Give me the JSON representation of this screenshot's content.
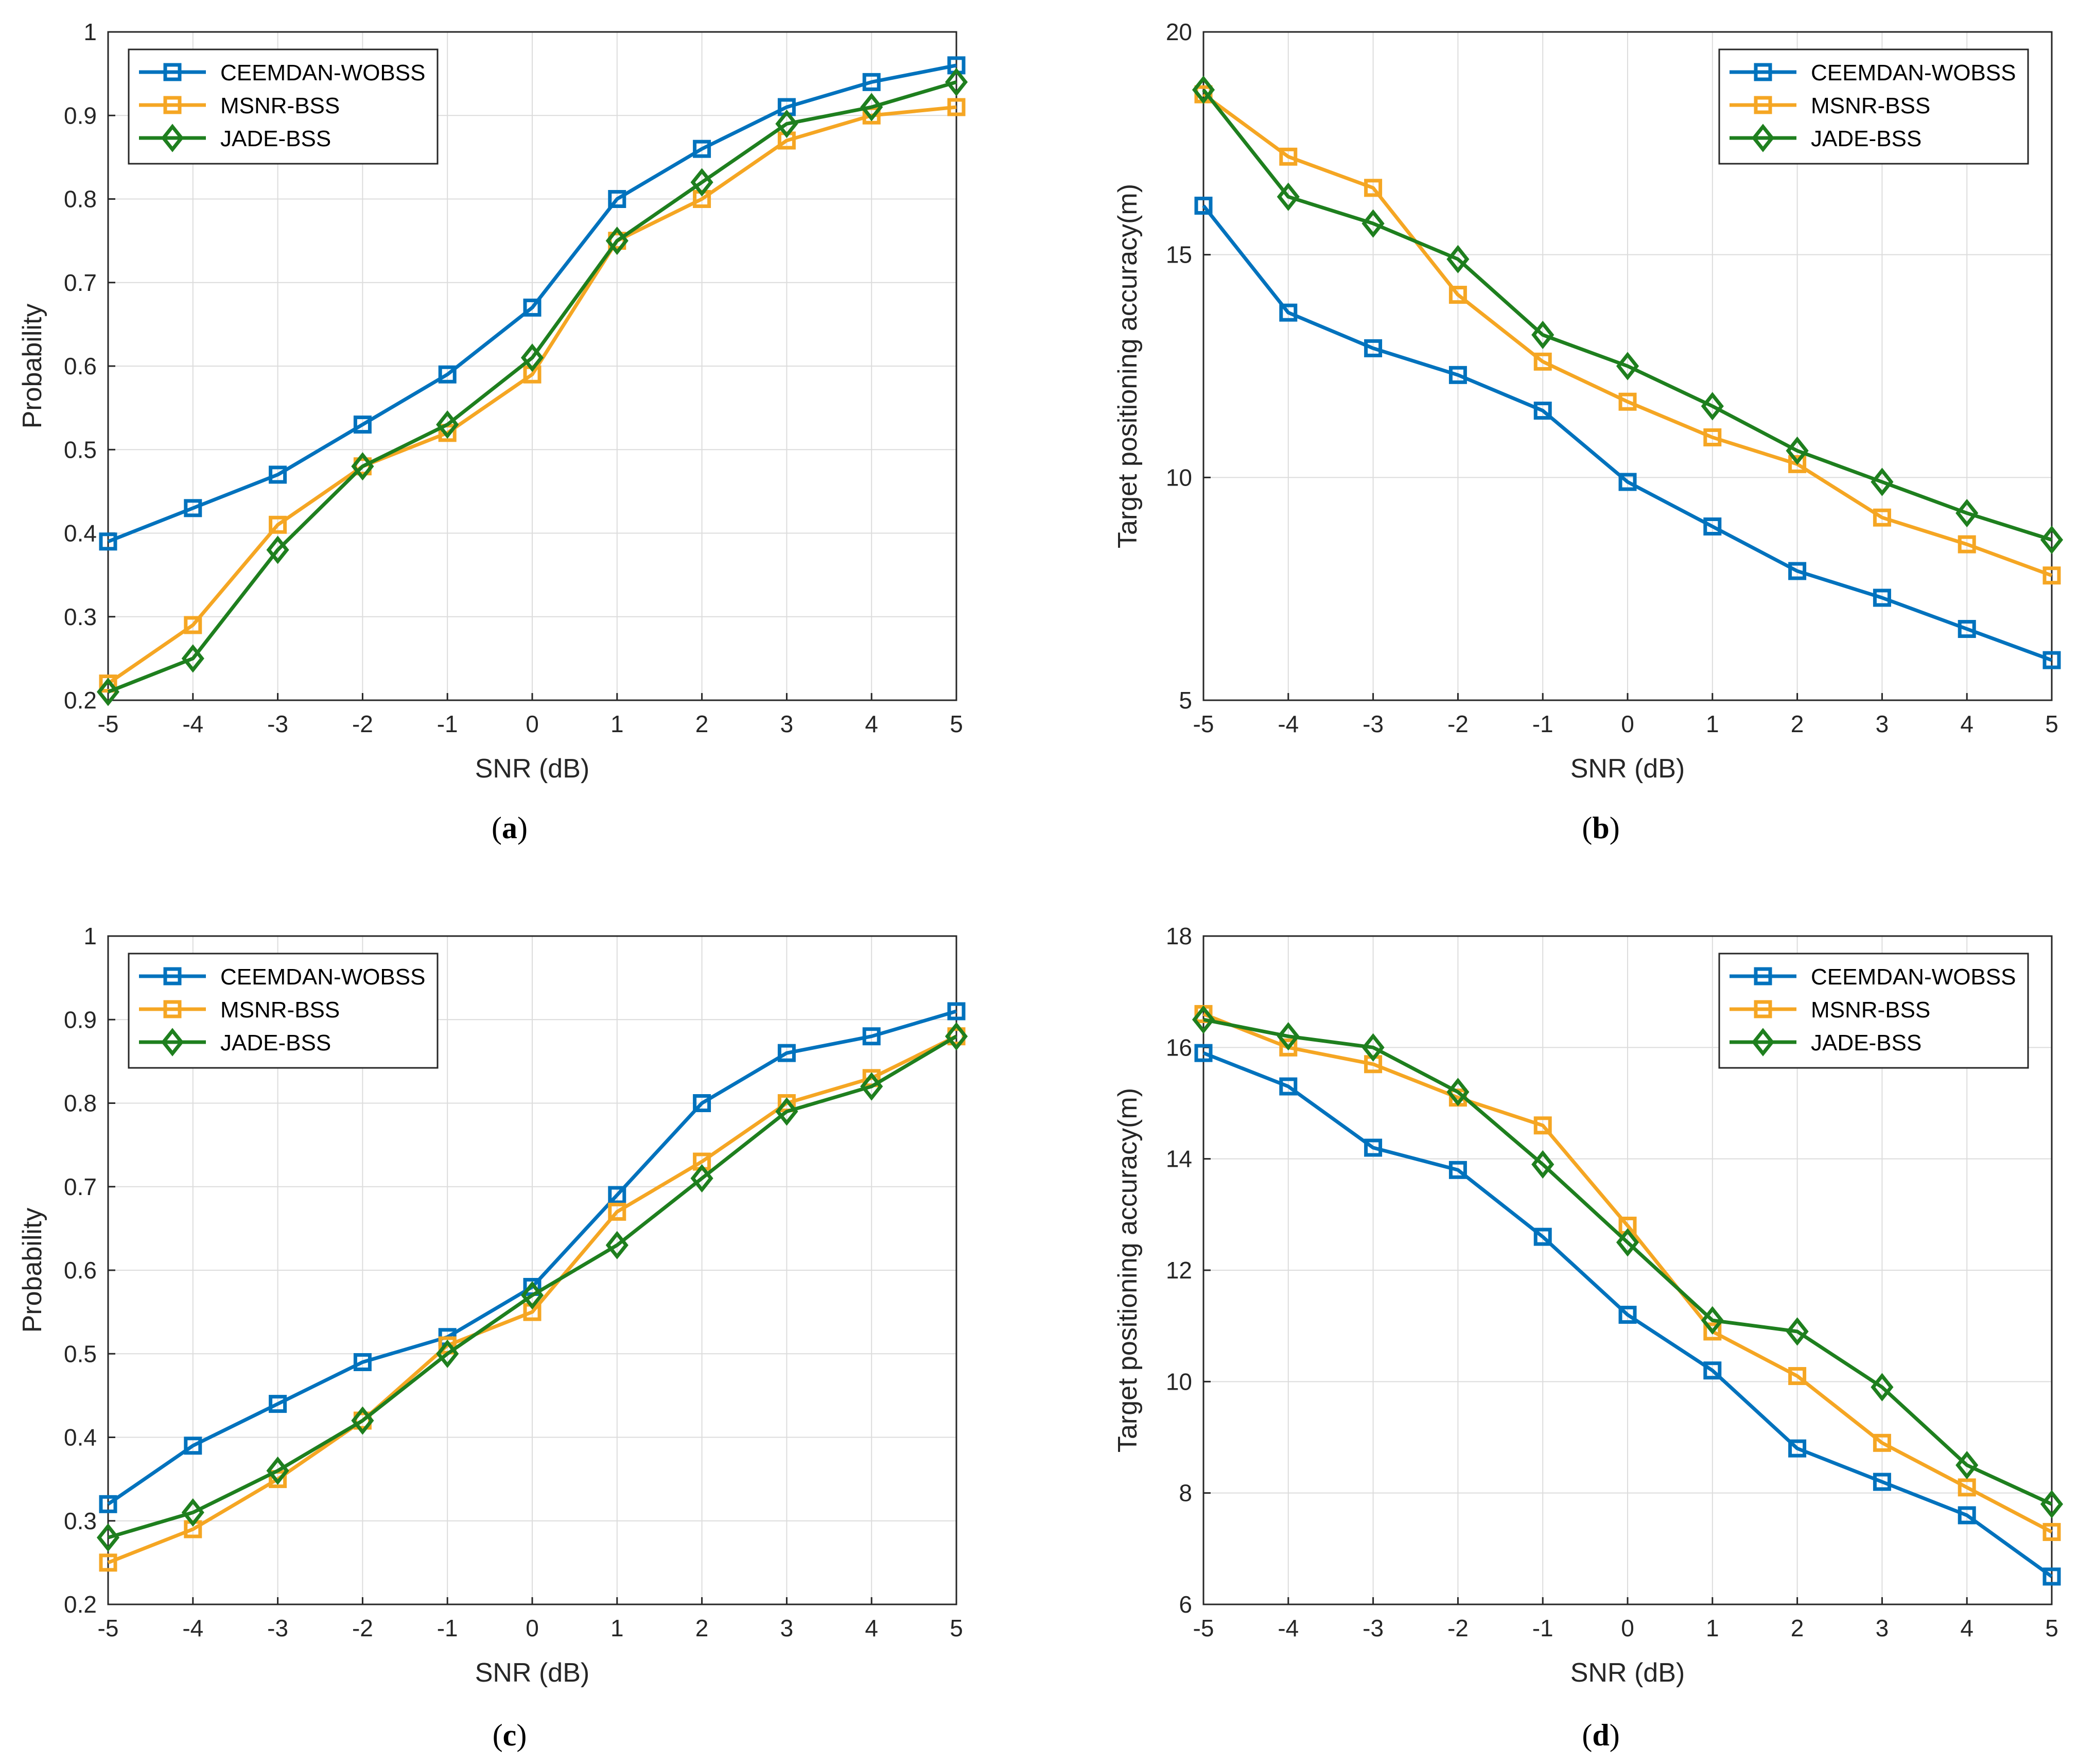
{
  "colors": {
    "CEEMDAN-WOBSS": "#0072BD",
    "MSNR-BSS": "#F5A623",
    "JADE-BSS": "#1E7F1E",
    "grid": "#dcdcdc",
    "axis": "#262626"
  },
  "chart_data": [
    {
      "id": "a",
      "type": "line",
      "caption": "a",
      "xlabel": "SNR (dB)",
      "ylabel": "Probability",
      "x": [
        -5,
        -4,
        -3,
        -2,
        -1,
        0,
        1,
        2,
        3,
        4,
        5
      ],
      "xticks": [
        "-5",
        "-4",
        "-3",
        "-2",
        "-1",
        "0",
        "1",
        "2",
        "3",
        "4",
        "5"
      ],
      "xlim": [
        -5,
        5
      ],
      "ylim": [
        0.2,
        1
      ],
      "yticks": [
        0.2,
        0.3,
        0.4,
        0.5,
        0.6,
        0.7,
        0.8,
        0.9,
        1
      ],
      "ytick_labels": [
        "0.2",
        "0.3",
        "0.4",
        "0.5",
        "0.6",
        "0.7",
        "0.8",
        "0.9",
        "1"
      ],
      "grid": true,
      "legend": "top-left",
      "series": [
        {
          "name": "CEEMDAN-WOBSS",
          "marker": "square",
          "values": [
            0.39,
            0.43,
            0.47,
            0.53,
            0.59,
            0.67,
            0.8,
            0.86,
            0.91,
            0.94,
            0.96
          ]
        },
        {
          "name": "MSNR-BSS",
          "marker": "square",
          "values": [
            0.22,
            0.29,
            0.41,
            0.48,
            0.52,
            0.59,
            0.75,
            0.8,
            0.87,
            0.9,
            0.91
          ]
        },
        {
          "name": "JADE-BSS",
          "marker": "diamond",
          "values": [
            0.21,
            0.25,
            0.38,
            0.48,
            0.53,
            0.61,
            0.75,
            0.82,
            0.89,
            0.91,
            0.94
          ]
        }
      ]
    },
    {
      "id": "b",
      "type": "line",
      "caption": "b",
      "xlabel": "SNR (dB)",
      "ylabel": "Target positioning accuracy(m)",
      "x": [
        -5,
        -4,
        -3,
        -2,
        -1,
        0,
        1,
        2,
        3,
        4,
        5
      ],
      "xticks": [
        "-5",
        "-4",
        "-3",
        "-2",
        "-1",
        "0",
        "1",
        "2",
        "3",
        "4",
        "5"
      ],
      "xlim": [
        -5,
        5
      ],
      "ylim": [
        5,
        20
      ],
      "yticks": [
        5,
        10,
        15,
        20
      ],
      "ytick_labels": [
        "5",
        "10",
        "15",
        "20"
      ],
      "grid": true,
      "legend": "top-right",
      "series": [
        {
          "name": "CEEMDAN-WOBSS",
          "marker": "square",
          "values": [
            16.1,
            13.7,
            12.9,
            12.3,
            11.5,
            9.9,
            8.9,
            7.9,
            7.3,
            6.6,
            5.9
          ]
        },
        {
          "name": "MSNR-BSS",
          "marker": "square",
          "values": [
            18.6,
            17.2,
            16.5,
            14.1,
            12.6,
            11.7,
            10.9,
            10.3,
            9.1,
            8.5,
            7.8
          ]
        },
        {
          "name": "JADE-BSS",
          "marker": "diamond",
          "values": [
            18.7,
            16.3,
            15.7,
            14.9,
            13.2,
            12.5,
            11.6,
            10.6,
            9.9,
            9.2,
            8.6
          ]
        }
      ]
    },
    {
      "id": "c",
      "type": "line",
      "caption": "c",
      "xlabel": "SNR (dB)",
      "ylabel": "Probability",
      "x": [
        -5,
        -4,
        -3,
        -2,
        -1,
        0,
        1,
        2,
        3,
        4,
        5
      ],
      "xticks": [
        "-5",
        "-4",
        "-3",
        "-2",
        "-1",
        "0",
        "1",
        "2",
        "3",
        "4",
        "5"
      ],
      "xlim": [
        -5,
        5
      ],
      "ylim": [
        0.2,
        1
      ],
      "yticks": [
        0.2,
        0.3,
        0.4,
        0.5,
        0.6,
        0.7,
        0.8,
        0.9,
        1
      ],
      "ytick_labels": [
        "0.2",
        "0.3",
        "0.4",
        "0.5",
        "0.6",
        "0.7",
        "0.8",
        "0.9",
        "1"
      ],
      "grid": true,
      "legend": "top-left",
      "series": [
        {
          "name": "CEEMDAN-WOBSS",
          "marker": "square",
          "values": [
            0.32,
            0.39,
            0.44,
            0.49,
            0.52,
            0.58,
            0.69,
            0.8,
            0.86,
            0.88,
            0.91
          ]
        },
        {
          "name": "MSNR-BSS",
          "marker": "square",
          "values": [
            0.25,
            0.29,
            0.35,
            0.42,
            0.51,
            0.55,
            0.67,
            0.73,
            0.8,
            0.83,
            0.88
          ]
        },
        {
          "name": "JADE-BSS",
          "marker": "diamond",
          "values": [
            0.28,
            0.31,
            0.36,
            0.42,
            0.5,
            0.57,
            0.63,
            0.71,
            0.79,
            0.82,
            0.88
          ]
        }
      ]
    },
    {
      "id": "d",
      "type": "line",
      "caption": "d",
      "xlabel": "SNR (dB)",
      "ylabel": "Target positioning accuracy(m)",
      "x": [
        -5,
        -4,
        -3,
        -2,
        -1,
        0,
        1,
        2,
        3,
        4,
        5
      ],
      "xticks": [
        "-5",
        "-4",
        "-3",
        "-2",
        "-1",
        "0",
        "1",
        "2",
        "3",
        "4",
        "5"
      ],
      "xlim": [
        -5,
        5
      ],
      "ylim": [
        6,
        18
      ],
      "yticks": [
        6,
        8,
        10,
        12,
        14,
        16,
        18
      ],
      "ytick_labels": [
        "6",
        "8",
        "10",
        "12",
        "14",
        "16",
        "18"
      ],
      "grid": true,
      "legend": "top-right",
      "series": [
        {
          "name": "CEEMDAN-WOBSS",
          "marker": "square",
          "values": [
            15.9,
            15.3,
            14.2,
            13.8,
            12.6,
            11.2,
            10.2,
            8.8,
            8.2,
            7.6,
            6.5
          ]
        },
        {
          "name": "MSNR-BSS",
          "marker": "square",
          "values": [
            16.6,
            16.0,
            15.7,
            15.1,
            14.6,
            12.8,
            10.9,
            10.1,
            8.9,
            8.1,
            7.3
          ]
        },
        {
          "name": "JADE-BSS",
          "marker": "diamond",
          "values": [
            16.5,
            16.2,
            16.0,
            15.2,
            13.9,
            12.5,
            11.1,
            10.9,
            9.9,
            8.5,
            7.8
          ]
        }
      ]
    }
  ]
}
